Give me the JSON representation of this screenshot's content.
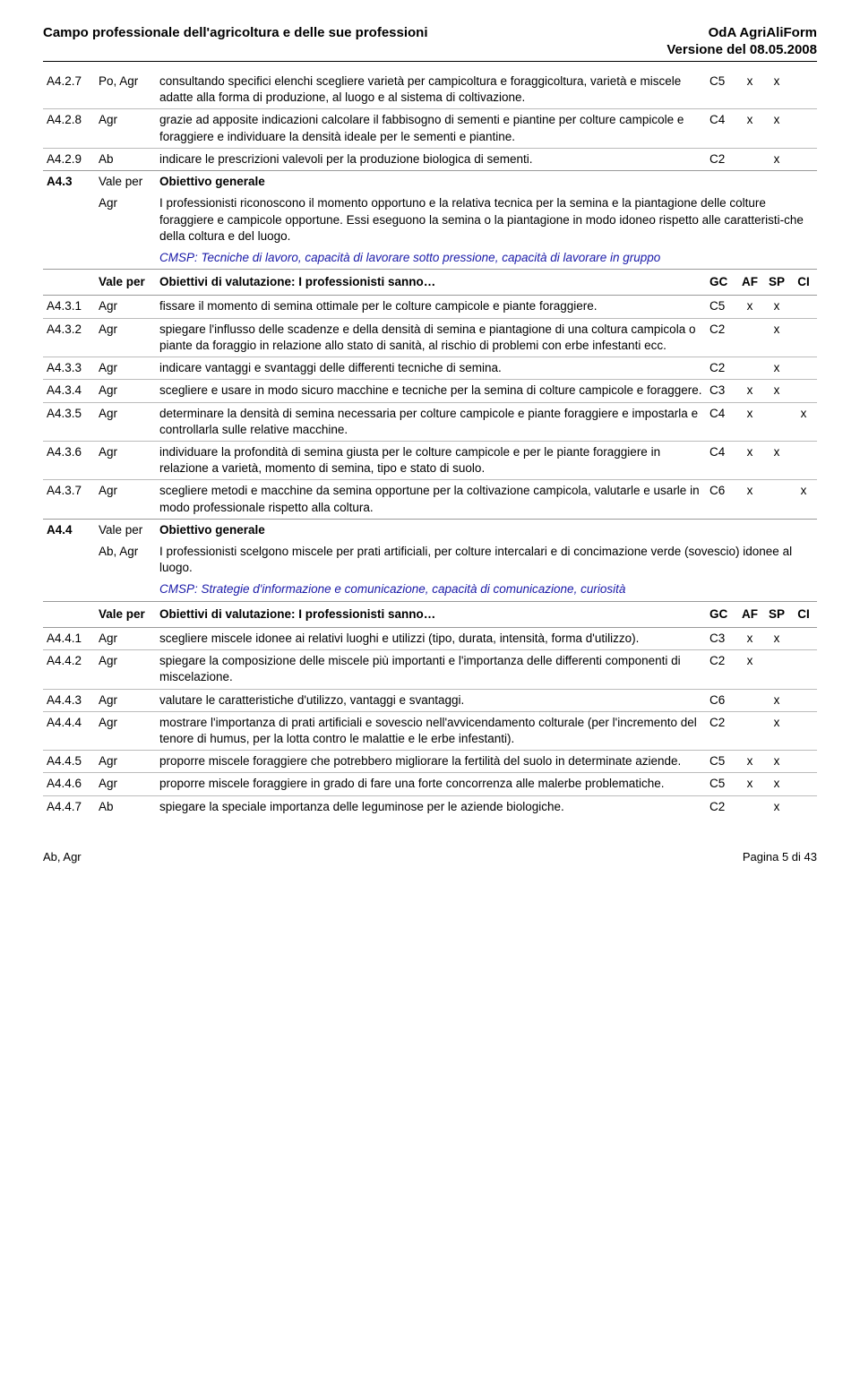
{
  "header": {
    "left": "Campo professionale dell'agricoltura e delle sue professioni",
    "right": "OdA AgriAliForm",
    "sub": "Versione del 08.05.2008"
  },
  "footer": {
    "left": "Ab, Agr",
    "right": "Pagina 5 di 43"
  },
  "evalHeader": {
    "vale": "Vale per",
    "desc": "Obiettivi di  valutazione: I professionisti sanno…",
    "gc": "GC",
    "af": "AF",
    "sp": "SP",
    "ci": "CI"
  },
  "objGen": "Obiettivo generale",
  "rows1": [
    {
      "id": "A4.2.7",
      "vale": "Po, Agr",
      "desc": "consultando specifici elenchi scegliere varietà per campicoltura e foraggicoltura, varietà e miscele adatte alla forma di produzione, al luogo e al sistema di coltivazione.",
      "gc": "C5",
      "af": "x",
      "sp": "x",
      "ci": ""
    },
    {
      "id": "A4.2.8",
      "vale": "Agr",
      "desc": "grazie ad apposite indicazioni calcolare il fabbisogno di sementi e piantine per colture campicole e foraggiere e individuare la densità ideale per le sementi e piantine.",
      "gc": "C4",
      "af": "x",
      "sp": "x",
      "ci": ""
    },
    {
      "id": "A4.2.9",
      "vale": "Ab",
      "desc": "indicare le prescrizioni valevoli per la produzione biologica di sementi.",
      "gc": "C2",
      "af": "",
      "sp": "x",
      "ci": ""
    }
  ],
  "section_a43": {
    "id": "A4.3",
    "vale": "Vale per",
    "valeBody": "Agr",
    "desc": "I professionisti riconoscono il momento opportuno e la relativa tecnica per la semina e la piantagione delle colture foraggiere e campicole opportune. Essi eseguono la semina o la piantagione in modo idoneo rispetto alle caratteristi-che della coltura e del luogo.",
    "cmsp": "CMSP: Tecniche di lavoro, capacità di lavorare sotto pressione, capacità di lavorare in gruppo"
  },
  "rows2": [
    {
      "id": "A4.3.1",
      "vale": "Agr",
      "desc": "fissare il momento di semina ottimale per le colture campicole e piante foraggiere.",
      "gc": "C5",
      "af": "x",
      "sp": "x",
      "ci": ""
    },
    {
      "id": "A4.3.2",
      "vale": "Agr",
      "desc": "spiegare l'influsso delle scadenze e della densità di semina e piantagione di una coltura campicola o piante da foraggio in relazione allo stato di sanità, al rischio di problemi con erbe infestanti ecc.",
      "gc": "C2",
      "af": "",
      "sp": "x",
      "ci": ""
    },
    {
      "id": "A4.3.3",
      "vale": "Agr",
      "desc": "indicare vantaggi e svantaggi delle differenti tecniche di semina.",
      "gc": "C2",
      "af": "",
      "sp": "x",
      "ci": ""
    },
    {
      "id": "A4.3.4",
      "vale": "Agr",
      "desc": "scegliere e usare in modo sicuro macchine e tecniche per la semina di colture campicole e foraggere.",
      "gc": "C3",
      "af": "x",
      "sp": "x",
      "ci": ""
    },
    {
      "id": "A4.3.5",
      "vale": "Agr",
      "desc": "determinare la densità di semina necessaria per colture campicole e piante foraggiere e impostarla  e controllarla sulle relative macchine.",
      "gc": "C4",
      "af": "x",
      "sp": "",
      "ci": "x"
    },
    {
      "id": "A4.3.6",
      "vale": "Agr",
      "desc": "individuare la profondità di semina giusta per le colture campicole e per le piante foraggiere in relazione a varietà, momento di semina, tipo e stato di suolo.",
      "gc": "C4",
      "af": "x",
      "sp": "x",
      "ci": ""
    },
    {
      "id": "A4.3.7",
      "vale": "Agr",
      "desc": "scegliere metodi e macchine da semina opportune per la coltivazione campicola, valutarle e usarle in modo professionale rispetto alla coltura.",
      "gc": "C6",
      "af": "x",
      "sp": "",
      "ci": "x"
    }
  ],
  "section_a44": {
    "id": "A4.4",
    "vale": "Vale per",
    "valeBody": "Ab, Agr",
    "desc": "I professionisti scelgono miscele per prati artificiali, per colture intercalari e di concimazione verde (sovescio) idonee al luogo.",
    "cmsp": "CMSP: Strategie d'informazione e comunicazione, capacità di comunicazione, curiosità"
  },
  "rows3": [
    {
      "id": "A4.4.1",
      "vale": "Agr",
      "desc": "scegliere miscele idonee ai relativi luoghi e utilizzi (tipo, durata, intensità, forma d'utilizzo).",
      "gc": "C3",
      "af": "x",
      "sp": "x",
      "ci": ""
    },
    {
      "id": "A4.4.2",
      "vale": "Agr",
      "desc": "spiegare la composizione delle miscele più importanti e l'importanza delle differenti componenti di miscelazione.",
      "gc": "C2",
      "af": "x",
      "sp": "",
      "ci": ""
    },
    {
      "id": "A4.4.3",
      "vale": "Agr",
      "desc": "valutare le caratteristiche d'utilizzo, vantaggi e svantaggi.",
      "gc": "C6",
      "af": "",
      "sp": "x",
      "ci": ""
    },
    {
      "id": "A4.4.4",
      "vale": "Agr",
      "desc": "mostrare l'importanza di prati artificiali e sovescio nell'avvicendamento colturale (per l'incremento del tenore di humus, per la lotta contro le malattie e le erbe infestanti).",
      "gc": "C2",
      "af": "",
      "sp": "x",
      "ci": ""
    },
    {
      "id": "A4.4.5",
      "vale": "Agr",
      "desc": "proporre miscele foraggiere che potrebbero migliorare la fertilità del suolo in determinate aziende.",
      "gc": "C5",
      "af": "x",
      "sp": "x",
      "ci": ""
    },
    {
      "id": "A4.4.6",
      "vale": "Agr",
      "desc": "proporre miscele foraggiere in grado di fare una forte concorrenza alle malerbe problematiche.",
      "gc": "C5",
      "af": "x",
      "sp": "x",
      "ci": ""
    },
    {
      "id": "A4.4.7",
      "vale": "Ab",
      "desc": "spiegare la speciale importanza delle leguminose per le aziende biologiche.",
      "gc": "C2",
      "af": "",
      "sp": "x",
      "ci": ""
    }
  ]
}
